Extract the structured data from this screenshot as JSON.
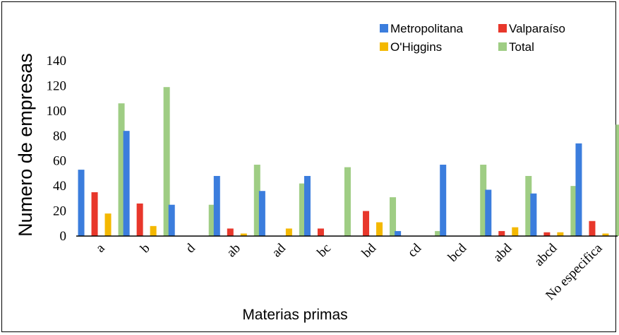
{
  "chart_data": {
    "type": "bar",
    "title": "",
    "xlabel": "Materias primas",
    "ylabel": "Numero de empresas",
    "ylim": [
      0,
      140
    ],
    "yticks": [
      0,
      20,
      40,
      60,
      80,
      100,
      120,
      140
    ],
    "grid": false,
    "legend_position": "top-right",
    "categories": [
      "a",
      "b",
      "d",
      "ab",
      "ad",
      "bc",
      "bd",
      "cd",
      "bcd",
      "abd",
      "abcd",
      "No especifica"
    ],
    "series": [
      {
        "name": "Metropolitana",
        "color": "#3b7ddd",
        "values": [
          53,
          84,
          25,
          48,
          36,
          48,
          0,
          4,
          57,
          37,
          34,
          74
        ]
      },
      {
        "name": "Valparaíso",
        "color": "#e8372b",
        "values": [
          35,
          26,
          0,
          6,
          0,
          6,
          20,
          0,
          0,
          4,
          3,
          12
        ]
      },
      {
        "name": "O'Higgins",
        "color": "#f4b800",
        "values": [
          18,
          8,
          0,
          2,
          6,
          0,
          11,
          0,
          0,
          7,
          3,
          2
        ]
      },
      {
        "name": "Total",
        "color": "#9fcd84",
        "values": [
          106,
          119,
          25,
          57,
          42,
          55,
          31,
          4,
          57,
          48,
          40,
          89
        ]
      }
    ]
  }
}
